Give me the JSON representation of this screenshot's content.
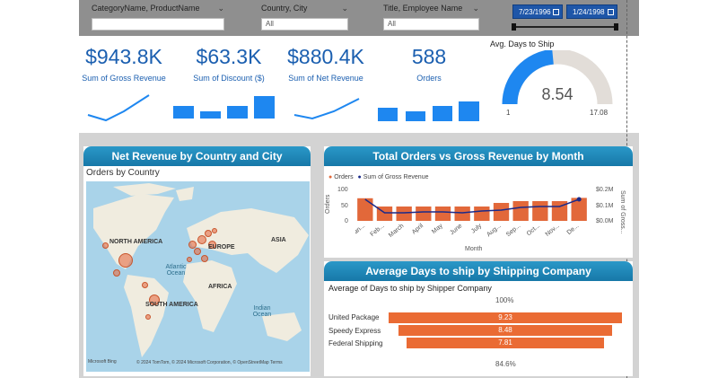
{
  "slicers": {
    "category": {
      "label": "CategoryName, ProductName",
      "value": ""
    },
    "country": {
      "label": "Country, City",
      "value": "All"
    },
    "employee": {
      "label": "Title, Employee Name",
      "value": "All"
    }
  },
  "date_range": {
    "start": "7/23/1996",
    "end": "1/24/1998"
  },
  "kpis": [
    {
      "value": "$943.8K",
      "label": "Sum of Gross Revenue"
    },
    {
      "value": "$63.3K",
      "label": "Sum of Discount ($)"
    },
    {
      "value": "$880.4K",
      "label": "Sum of Net Revenue"
    },
    {
      "value": "588",
      "label": "Orders"
    }
  ],
  "gauge": {
    "title": "Avg. Days to Ship",
    "value": "8.54",
    "min": "1",
    "max": "17.08",
    "fill_fraction": 0.47,
    "colors": {
      "fill": "#1e87f0",
      "track": "#e2ddd8"
    }
  },
  "map_card": {
    "title": "Net Revenue by Country and City",
    "subtitle": "Orders by Country",
    "labels": {
      "north_america": "NORTH AMERICA",
      "europe": "EUROPE",
      "asia": "ASIA",
      "africa": "AFRICA",
      "south_america": "SOUTH AMERICA",
      "atlantic": "Atlantic Ocean",
      "indian": "Indian Ocean"
    },
    "attribution": "© 2024 TomTom, © 2024 Microsoft Corporation, © OpenStreetMap  Terms",
    "logo": "Microsoft Bing"
  },
  "orders_card": {
    "title": "Total Orders vs Gross Revenue by Month",
    "legend": {
      "orders": "Orders",
      "revenue": "Sum of Gross Revenue"
    },
    "y_left_label": "Orders",
    "y_right_label": "Sum of Gross...",
    "x_label": "Month",
    "left_ticks": [
      "100",
      "50",
      "0"
    ],
    "right_ticks": [
      "$0.2M",
      "$0.1M",
      "$0.0M"
    ]
  },
  "chart_data": {
    "type": "bar",
    "categories": [
      "Jan...",
      "Feb...",
      "March",
      "April",
      "May",
      "June",
      "July",
      "Aug...",
      "Sep...",
      "Oct...",
      "Nov...",
      "De..."
    ],
    "series": [
      {
        "name": "Orders",
        "type": "bar",
        "values": [
          63,
          40,
          40,
          40,
          40,
          40,
          40,
          50,
          55,
          55,
          55,
          64
        ]
      },
      {
        "name": "Sum of Gross Revenue",
        "type": "line",
        "values": [
          0.12,
          0.045,
          0.045,
          0.05,
          0.05,
          0.045,
          0.055,
          0.06,
          0.075,
          0.08,
          0.08,
          0.12
        ]
      }
    ],
    "ylim": [
      0,
      100
    ],
    "y2lim": [
      0,
      0.2
    ],
    "colors": {
      "bar": "#e2683a",
      "line": "#1a2a8a"
    }
  },
  "shipping_card": {
    "title": "Average Days to ship by Shipping Company",
    "subtitle": "Average of Days to ship by Shipper Company",
    "top_pct": "100%",
    "bottom_pct": "84.6%",
    "companies": [
      {
        "name": "United Package",
        "value": "9.23",
        "fraction": 1.0
      },
      {
        "name": "Speedy Express",
        "value": "8.48",
        "fraction": 0.919
      },
      {
        "name": "Federal Shipping",
        "value": "7.81",
        "fraction": 0.846
      }
    ]
  }
}
